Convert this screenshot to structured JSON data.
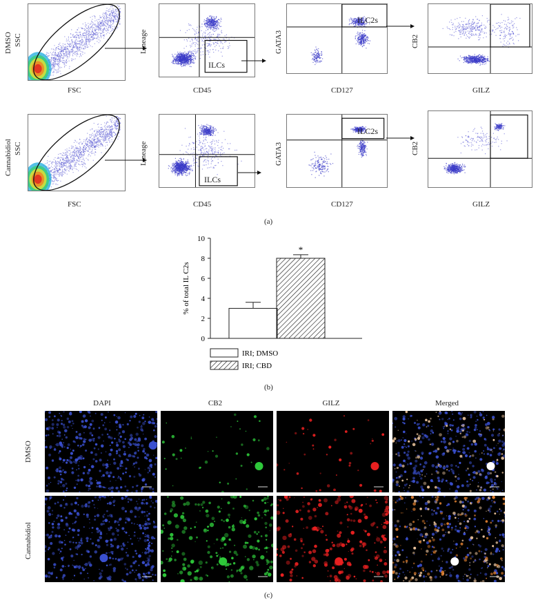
{
  "panel_a": {
    "row_labels": [
      "DMSO",
      "Cannabidiol"
    ],
    "axes": {
      "ssc": "SSC",
      "fsc": "FSC",
      "lineage": "Lineage",
      "cd45": "CD45",
      "gata3": "GATA3",
      "cd127": "CD127",
      "cb2": "CB2",
      "gilz": "GILZ"
    },
    "gates": {
      "ilcs": "ILCs",
      "ilc2s": "ILC2s"
    },
    "caption": "(a)"
  },
  "panel_b": {
    "caption": "(b)",
    "chart_data": {
      "type": "bar",
      "categories": [
        "IRI; DMSO",
        "IRI; CBD"
      ],
      "values": [
        3.0,
        8.0
      ],
      "errors": [
        0.6,
        0.35
      ],
      "ylabel": "% of total IL C2s",
      "ylim": [
        0,
        10
      ],
      "yticks": [
        0,
        2,
        4,
        6,
        8,
        10
      ],
      "significance": [
        "",
        "*"
      ],
      "legend": [
        "IRI; DMSO",
        "IRI; CBD"
      ],
      "legend_position": "bottom",
      "patterns": [
        "open",
        "hatched"
      ]
    }
  },
  "panel_c": {
    "caption": "(c)",
    "columns": [
      "DAPI",
      "CB2",
      "GILZ",
      "Merged"
    ],
    "rows": [
      "DMSO",
      "Cannabidiol"
    ],
    "colors": {
      "dapi": "#3a50d0",
      "cb2": "#2ec83a",
      "gilz": "#e82020",
      "merged": "#f0c8a0"
    }
  }
}
